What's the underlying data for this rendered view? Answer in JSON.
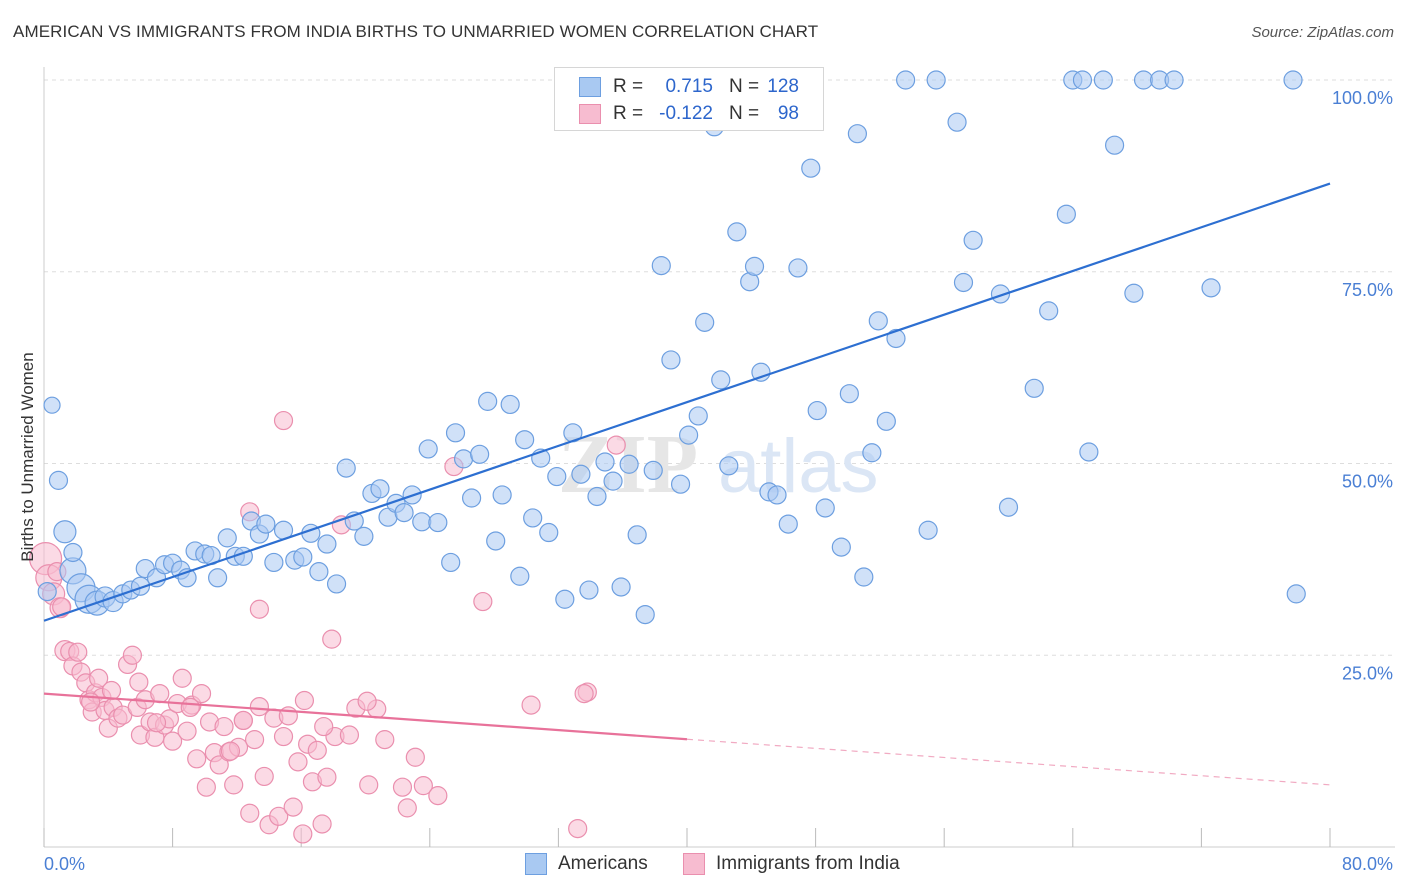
{
  "title": "AMERICAN VS IMMIGRANTS FROM INDIA BIRTHS TO UNMARRIED WOMEN CORRELATION CHART",
  "source": "Source: ZipAtlas.com",
  "watermark": {
    "zip": "ZIP",
    "atlas": "atlas"
  },
  "stats": [
    {
      "r_label": "R =",
      "r_value": "0.715",
      "n_label": "N =",
      "n_value": "128"
    },
    {
      "r_label": "R =",
      "r_value": "-0.122",
      "n_label": "N =",
      "n_value": "98"
    }
  ],
  "legend": [
    {
      "label": "Americans"
    },
    {
      "label": "Immigrants from India"
    }
  ],
  "colors": {
    "americans_fill": "#a9c9f2",
    "americans_stroke": "#6d9fe0",
    "americans_line": "#2d6fd1",
    "india_fill": "#f7bcd0",
    "india_stroke": "#ea8fae",
    "india_line": "#e8729a",
    "grid": "#dddddd",
    "tick_label": "#4a7fd4"
  },
  "chart_data": {
    "type": "scatter",
    "title": "AMERICAN VS IMMIGRANTS FROM INDIA BIRTHS TO UNMARRIED WOMEN CORRELATION CHART",
    "xlabel": "",
    "ylabel": "Births to Unmarried Women",
    "xlim": [
      0,
      80
    ],
    "ylim": [
      0,
      102
    ],
    "x_tick_labels": [
      "0.0%",
      "80.0%"
    ],
    "y_ticks": [
      25,
      50,
      75,
      100
    ],
    "y_tick_labels": [
      "25.0%",
      "50.0%",
      "75.0%",
      "100.0%"
    ],
    "grid": true,
    "legend_position": "bottom-center",
    "series": [
      {
        "name": "Americans",
        "r": 0.715,
        "n": 128,
        "trend": {
          "x": [
            0,
            80
          ],
          "y": [
            29.5,
            86.5
          ],
          "dashed_from_x": null
        },
        "points": [
          [
            0.5,
            57.6
          ],
          [
            0.9,
            47.8
          ],
          [
            1.3,
            41.1
          ],
          [
            1.8,
            36.0
          ],
          [
            2.3,
            33.8
          ],
          [
            2.8,
            32.3
          ],
          [
            3.3,
            31.8
          ],
          [
            3.8,
            32.6
          ],
          [
            4.3,
            32.0
          ],
          [
            4.9,
            33.0
          ],
          [
            5.4,
            33.5
          ],
          [
            6.0,
            34.0
          ],
          [
            6.3,
            36.3
          ],
          [
            7.0,
            35.1
          ],
          [
            7.5,
            36.8
          ],
          [
            8.0,
            37.0
          ],
          [
            8.5,
            36.1
          ],
          [
            8.9,
            35.1
          ],
          [
            9.4,
            38.6
          ],
          [
            10.0,
            38.2
          ],
          [
            10.4,
            38.0
          ],
          [
            10.8,
            35.1
          ],
          [
            11.4,
            40.3
          ],
          [
            11.9,
            37.9
          ],
          [
            12.4,
            37.9
          ],
          [
            12.9,
            42.5
          ],
          [
            13.4,
            40.8
          ],
          [
            13.8,
            42.1
          ],
          [
            14.3,
            37.1
          ],
          [
            14.9,
            41.3
          ],
          [
            15.6,
            37.4
          ],
          [
            16.1,
            37.8
          ],
          [
            16.6,
            40.9
          ],
          [
            17.1,
            35.9
          ],
          [
            17.6,
            39.5
          ],
          [
            18.2,
            34.3
          ],
          [
            18.8,
            49.4
          ],
          [
            19.3,
            42.5
          ],
          [
            19.9,
            40.5
          ],
          [
            20.4,
            46.1
          ],
          [
            20.9,
            46.7
          ],
          [
            21.4,
            43.0
          ],
          [
            21.9,
            44.8
          ],
          [
            22.4,
            43.6
          ],
          [
            22.9,
            45.9
          ],
          [
            23.5,
            42.4
          ],
          [
            23.9,
            51.9
          ],
          [
            24.5,
            42.3
          ],
          [
            25.3,
            37.1
          ],
          [
            25.6,
            54.0
          ],
          [
            26.1,
            50.6
          ],
          [
            26.6,
            45.5
          ],
          [
            27.1,
            51.2
          ],
          [
            27.6,
            58.1
          ],
          [
            28.1,
            39.9
          ],
          [
            28.5,
            45.9
          ],
          [
            29.0,
            57.7
          ],
          [
            29.6,
            35.3
          ],
          [
            29.9,
            53.1
          ],
          [
            30.4,
            42.9
          ],
          [
            30.9,
            50.7
          ],
          [
            31.4,
            41.0
          ],
          [
            31.9,
            48.3
          ],
          [
            32.4,
            32.3
          ],
          [
            32.9,
            54.0
          ],
          [
            33.4,
            48.6
          ],
          [
            33.9,
            33.5
          ],
          [
            34.4,
            45.7
          ],
          [
            34.9,
            50.2
          ],
          [
            35.4,
            47.7
          ],
          [
            35.9,
            33.9
          ],
          [
            36.4,
            49.9
          ],
          [
            36.9,
            40.7
          ],
          [
            37.4,
            30.3
          ],
          [
            37.9,
            49.1
          ],
          [
            38.4,
            75.8
          ],
          [
            39.0,
            63.5
          ],
          [
            39.6,
            47.3
          ],
          [
            40.1,
            53.7
          ],
          [
            40.7,
            56.2
          ],
          [
            41.1,
            68.4
          ],
          [
            41.7,
            93.9
          ],
          [
            42.1,
            60.9
          ],
          [
            42.6,
            49.7
          ],
          [
            43.1,
            80.2
          ],
          [
            43.9,
            73.7
          ],
          [
            44.2,
            75.7
          ],
          [
            44.6,
            61.9
          ],
          [
            45.1,
            46.3
          ],
          [
            45.6,
            45.9
          ],
          [
            46.3,
            42.1
          ],
          [
            46.9,
            75.5
          ],
          [
            47.7,
            88.5
          ],
          [
            48.1,
            56.9
          ],
          [
            48.6,
            44.2
          ],
          [
            49.6,
            39.1
          ],
          [
            50.1,
            59.1
          ],
          [
            50.6,
            93.0
          ],
          [
            51.0,
            35.2
          ],
          [
            51.5,
            51.4
          ],
          [
            51.9,
            68.6
          ],
          [
            52.4,
            55.5
          ],
          [
            53.0,
            66.3
          ],
          [
            53.6,
            100.0
          ],
          [
            55.5,
            100.0
          ],
          [
            55.0,
            41.3
          ],
          [
            56.8,
            94.5
          ],
          [
            57.2,
            73.6
          ],
          [
            57.8,
            79.1
          ],
          [
            59.5,
            72.1
          ],
          [
            60.0,
            44.3
          ],
          [
            61.6,
            59.8
          ],
          [
            62.5,
            69.9
          ],
          [
            63.6,
            82.5
          ],
          [
            64.0,
            100.0
          ],
          [
            64.6,
            100.0
          ],
          [
            65.0,
            51.5
          ],
          [
            65.9,
            100.0
          ],
          [
            66.6,
            91.5
          ],
          [
            67.8,
            72.2
          ],
          [
            68.4,
            100.0
          ],
          [
            69.4,
            100.0
          ],
          [
            70.3,
            100.0
          ],
          [
            72.6,
            72.9
          ],
          [
            77.7,
            100.0
          ],
          [
            77.9,
            33.0
          ],
          [
            0.2,
            33.3
          ],
          [
            1.8,
            38.4
          ]
        ],
        "sizes": [
          8,
          9,
          11,
          13,
          14,
          14,
          12,
          10,
          10,
          9,
          9,
          9,
          9,
          9,
          9,
          9,
          9,
          9,
          9,
          9,
          9,
          9,
          9,
          9,
          9,
          9,
          9,
          9,
          9,
          9,
          9,
          9,
          9,
          9,
          9,
          9,
          9,
          9,
          9,
          9,
          9,
          9,
          9,
          9,
          9,
          9,
          9,
          9,
          9,
          9,
          9,
          9,
          9,
          9,
          9,
          9,
          9,
          9,
          9,
          9,
          9,
          9,
          9,
          9,
          9,
          9,
          9,
          9,
          9,
          9,
          9,
          9,
          9,
          9,
          9,
          9,
          9,
          9,
          9,
          9,
          9,
          9,
          9,
          9,
          9,
          9,
          9,
          9,
          9,
          9,
          9,
          9,
          9,
          9,
          9,
          9,
          9,
          9,
          9,
          9,
          9,
          9,
          9,
          9,
          9,
          9,
          9,
          9,
          9,
          9,
          9,
          9,
          9,
          9,
          9,
          9,
          9,
          9,
          9,
          9,
          9,
          9,
          9,
          9,
          9,
          9,
          9,
          9
        ]
      },
      {
        "name": "Immigrants from India",
        "r": -0.122,
        "n": 98,
        "trend": {
          "x": [
            0,
            80
          ],
          "y": [
            20.0,
            8.1
          ],
          "dashed_from_x": 40
        },
        "points": [
          [
            0.1,
            37.6
          ],
          [
            0.3,
            35.1
          ],
          [
            0.6,
            33.0
          ],
          [
            1.0,
            31.2
          ],
          [
            1.3,
            25.6
          ],
          [
            1.6,
            25.5
          ],
          [
            1.8,
            23.6
          ],
          [
            2.1,
            25.4
          ],
          [
            2.3,
            22.8
          ],
          [
            2.6,
            21.4
          ],
          [
            2.8,
            19.2
          ],
          [
            3.0,
            17.6
          ],
          [
            3.2,
            20.1
          ],
          [
            3.4,
            22.0
          ],
          [
            3.6,
            19.5
          ],
          [
            3.8,
            17.8
          ],
          [
            4.0,
            15.5
          ],
          [
            4.3,
            18.2
          ],
          [
            4.6,
            16.8
          ],
          [
            4.9,
            17.2
          ],
          [
            5.2,
            23.8
          ],
          [
            5.5,
            25.0
          ],
          [
            5.8,
            18.2
          ],
          [
            6.0,
            14.6
          ],
          [
            6.3,
            19.2
          ],
          [
            6.6,
            16.3
          ],
          [
            6.9,
            14.3
          ],
          [
            7.2,
            20.0
          ],
          [
            7.5,
            15.9
          ],
          [
            7.8,
            16.7
          ],
          [
            8.0,
            13.8
          ],
          [
            8.3,
            18.7
          ],
          [
            8.6,
            22.0
          ],
          [
            8.9,
            15.1
          ],
          [
            9.2,
            18.5
          ],
          [
            9.5,
            11.5
          ],
          [
            9.8,
            20.0
          ],
          [
            10.1,
            7.8
          ],
          [
            10.3,
            16.3
          ],
          [
            10.6,
            12.3
          ],
          [
            10.9,
            10.7
          ],
          [
            11.2,
            15.7
          ],
          [
            11.5,
            12.4
          ],
          [
            11.8,
            8.1
          ],
          [
            12.1,
            13.0
          ],
          [
            12.4,
            16.5
          ],
          [
            12.8,
            4.4
          ],
          [
            13.1,
            14.0
          ],
          [
            13.4,
            18.3
          ],
          [
            13.7,
            9.2
          ],
          [
            14.0,
            2.9
          ],
          [
            14.3,
            16.8
          ],
          [
            14.6,
            4.0
          ],
          [
            14.9,
            14.4
          ],
          [
            15.2,
            17.1
          ],
          [
            15.5,
            5.2
          ],
          [
            15.8,
            11.1
          ],
          [
            16.1,
            1.7
          ],
          [
            16.4,
            13.4
          ],
          [
            16.7,
            8.5
          ],
          [
            17.0,
            12.6
          ],
          [
            17.3,
            3.0
          ],
          [
            17.6,
            9.1
          ],
          [
            17.9,
            27.1
          ],
          [
            18.1,
            14.4
          ],
          [
            18.5,
            42.0
          ],
          [
            19.0,
            14.6
          ],
          [
            19.4,
            18.1
          ],
          [
            20.2,
            8.1
          ],
          [
            20.7,
            18.0
          ],
          [
            22.3,
            7.8
          ],
          [
            22.6,
            5.1
          ],
          [
            23.1,
            11.7
          ],
          [
            23.6,
            8.0
          ],
          [
            24.5,
            6.7
          ],
          [
            14.9,
            55.6
          ],
          [
            25.5,
            49.6
          ],
          [
            27.3,
            32.0
          ],
          [
            12.8,
            43.7
          ],
          [
            13.4,
            31.0
          ],
          [
            30.3,
            18.5
          ],
          [
            33.2,
            2.4
          ],
          [
            33.8,
            20.2
          ],
          [
            35.6,
            52.4
          ],
          [
            33.6,
            20.0
          ],
          [
            1.1,
            31.3
          ],
          [
            0.8,
            35.9
          ],
          [
            2.9,
            18.9
          ],
          [
            4.2,
            20.4
          ],
          [
            5.9,
            21.5
          ],
          [
            7.0,
            16.2
          ],
          [
            9.1,
            18.2
          ],
          [
            11.6,
            12.5
          ],
          [
            12.4,
            16.5
          ],
          [
            16.2,
            19.1
          ],
          [
            17.4,
            15.7
          ],
          [
            20.1,
            19.0
          ],
          [
            21.2,
            14.0
          ]
        ],
        "sizes": [
          16,
          13,
          11,
          10,
          10,
          9,
          9,
          9,
          9,
          9,
          9,
          9,
          9,
          9,
          9,
          9,
          9,
          9,
          9,
          9,
          9,
          9,
          9,
          9,
          9,
          9,
          9,
          9,
          9,
          9,
          9,
          9,
          9,
          9,
          9,
          9,
          9,
          9,
          9,
          9,
          9,
          9,
          9,
          9,
          9,
          9,
          9,
          9,
          9,
          9,
          9,
          9,
          9,
          9,
          9,
          9,
          9,
          9,
          9,
          9,
          9,
          9,
          9,
          9,
          9,
          9,
          9,
          9,
          9,
          9,
          9,
          9,
          9,
          9,
          9,
          9,
          9,
          9,
          9,
          9,
          9,
          9,
          9,
          9,
          9,
          9,
          9,
          9,
          9,
          9,
          9,
          9,
          9,
          9,
          9,
          9,
          9,
          9
        ]
      }
    ]
  }
}
